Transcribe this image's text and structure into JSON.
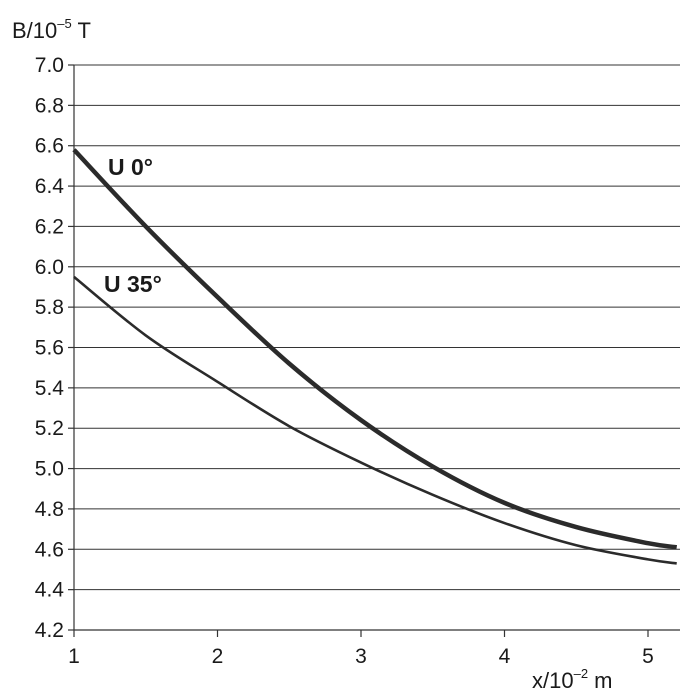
{
  "chart_data": {
    "type": "line",
    "ylabel": {
      "text": "B/10",
      "sup": "–5",
      "unit": " T"
    },
    "xlabel": {
      "text": "x/10",
      "sup": "–2",
      "unit": " m"
    },
    "xlim": [
      1,
      5.2
    ],
    "ylim": [
      4.2,
      7.0
    ],
    "xticks": [
      "1",
      "2",
      "3",
      "4",
      "5"
    ],
    "yticks": [
      "4.2",
      "4.4",
      "4.6",
      "4.8",
      "5.0",
      "5.2",
      "5.4",
      "5.6",
      "5.8",
      "6.0",
      "6.2",
      "6.4",
      "6.6",
      "6.8",
      "7.0"
    ],
    "grid": "horizontal",
    "series": [
      {
        "name": "U 0°",
        "x": [
          1.0,
          1.5,
          2.0,
          2.5,
          3.0,
          3.5,
          4.0,
          4.5,
          5.0,
          5.2
        ],
        "y": [
          6.58,
          6.2,
          5.85,
          5.52,
          5.24,
          5.01,
          4.83,
          4.71,
          4.63,
          4.61
        ]
      },
      {
        "name": "U 35°",
        "x": [
          1.0,
          1.5,
          2.0,
          2.5,
          3.0,
          3.5,
          4.0,
          4.5,
          5.0,
          5.2
        ],
        "y": [
          5.95,
          5.66,
          5.43,
          5.21,
          5.03,
          4.87,
          4.73,
          4.62,
          4.55,
          4.53
        ]
      }
    ]
  }
}
